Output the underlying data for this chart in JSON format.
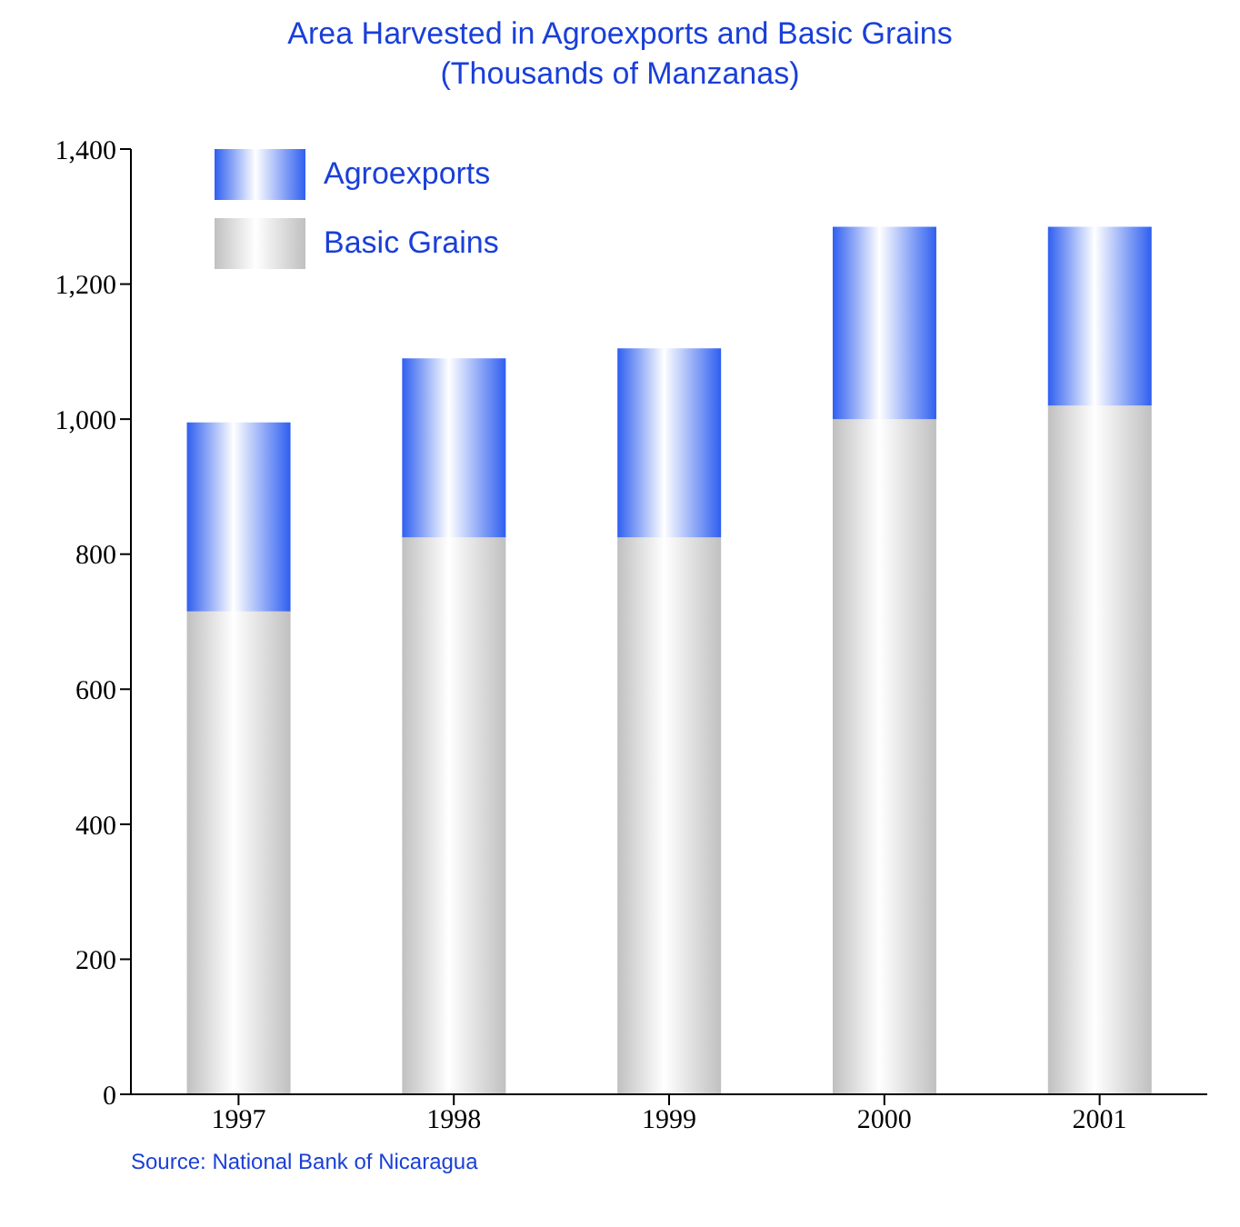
{
  "chart_data": {
    "type": "bar",
    "title": "Area Harvested in Agroexports and Basic Grains",
    "subtitle": "(Thousands of Manzanas)",
    "categories": [
      "1997",
      "1998",
      "1999",
      "2000",
      "2001"
    ],
    "stacked": true,
    "series": [
      {
        "name": "Basic Grains",
        "color": "#c0c0c0",
        "values": [
          715,
          825,
          825,
          1000,
          1020
        ]
      },
      {
        "name": "Agroexports",
        "color": "#2f5ff0",
        "values": [
          280,
          265,
          280,
          285,
          265
        ]
      }
    ],
    "ylim": [
      0,
      1400
    ],
    "yticks": [
      {
        "value": 0,
        "label": "0"
      },
      {
        "value": 200,
        "label": "200"
      },
      {
        "value": 400,
        "label": "400"
      },
      {
        "value": 600,
        "label": "600"
      },
      {
        "value": 800,
        "label": "800"
      },
      {
        "value": 1000,
        "label": "1,000"
      },
      {
        "value": 1200,
        "label": "1,200"
      },
      {
        "value": 1400,
        "label": "1,400"
      }
    ],
    "grid": false,
    "legend": "top left",
    "annotations": [
      "Source: National Bank of Nicaragua"
    ]
  }
}
